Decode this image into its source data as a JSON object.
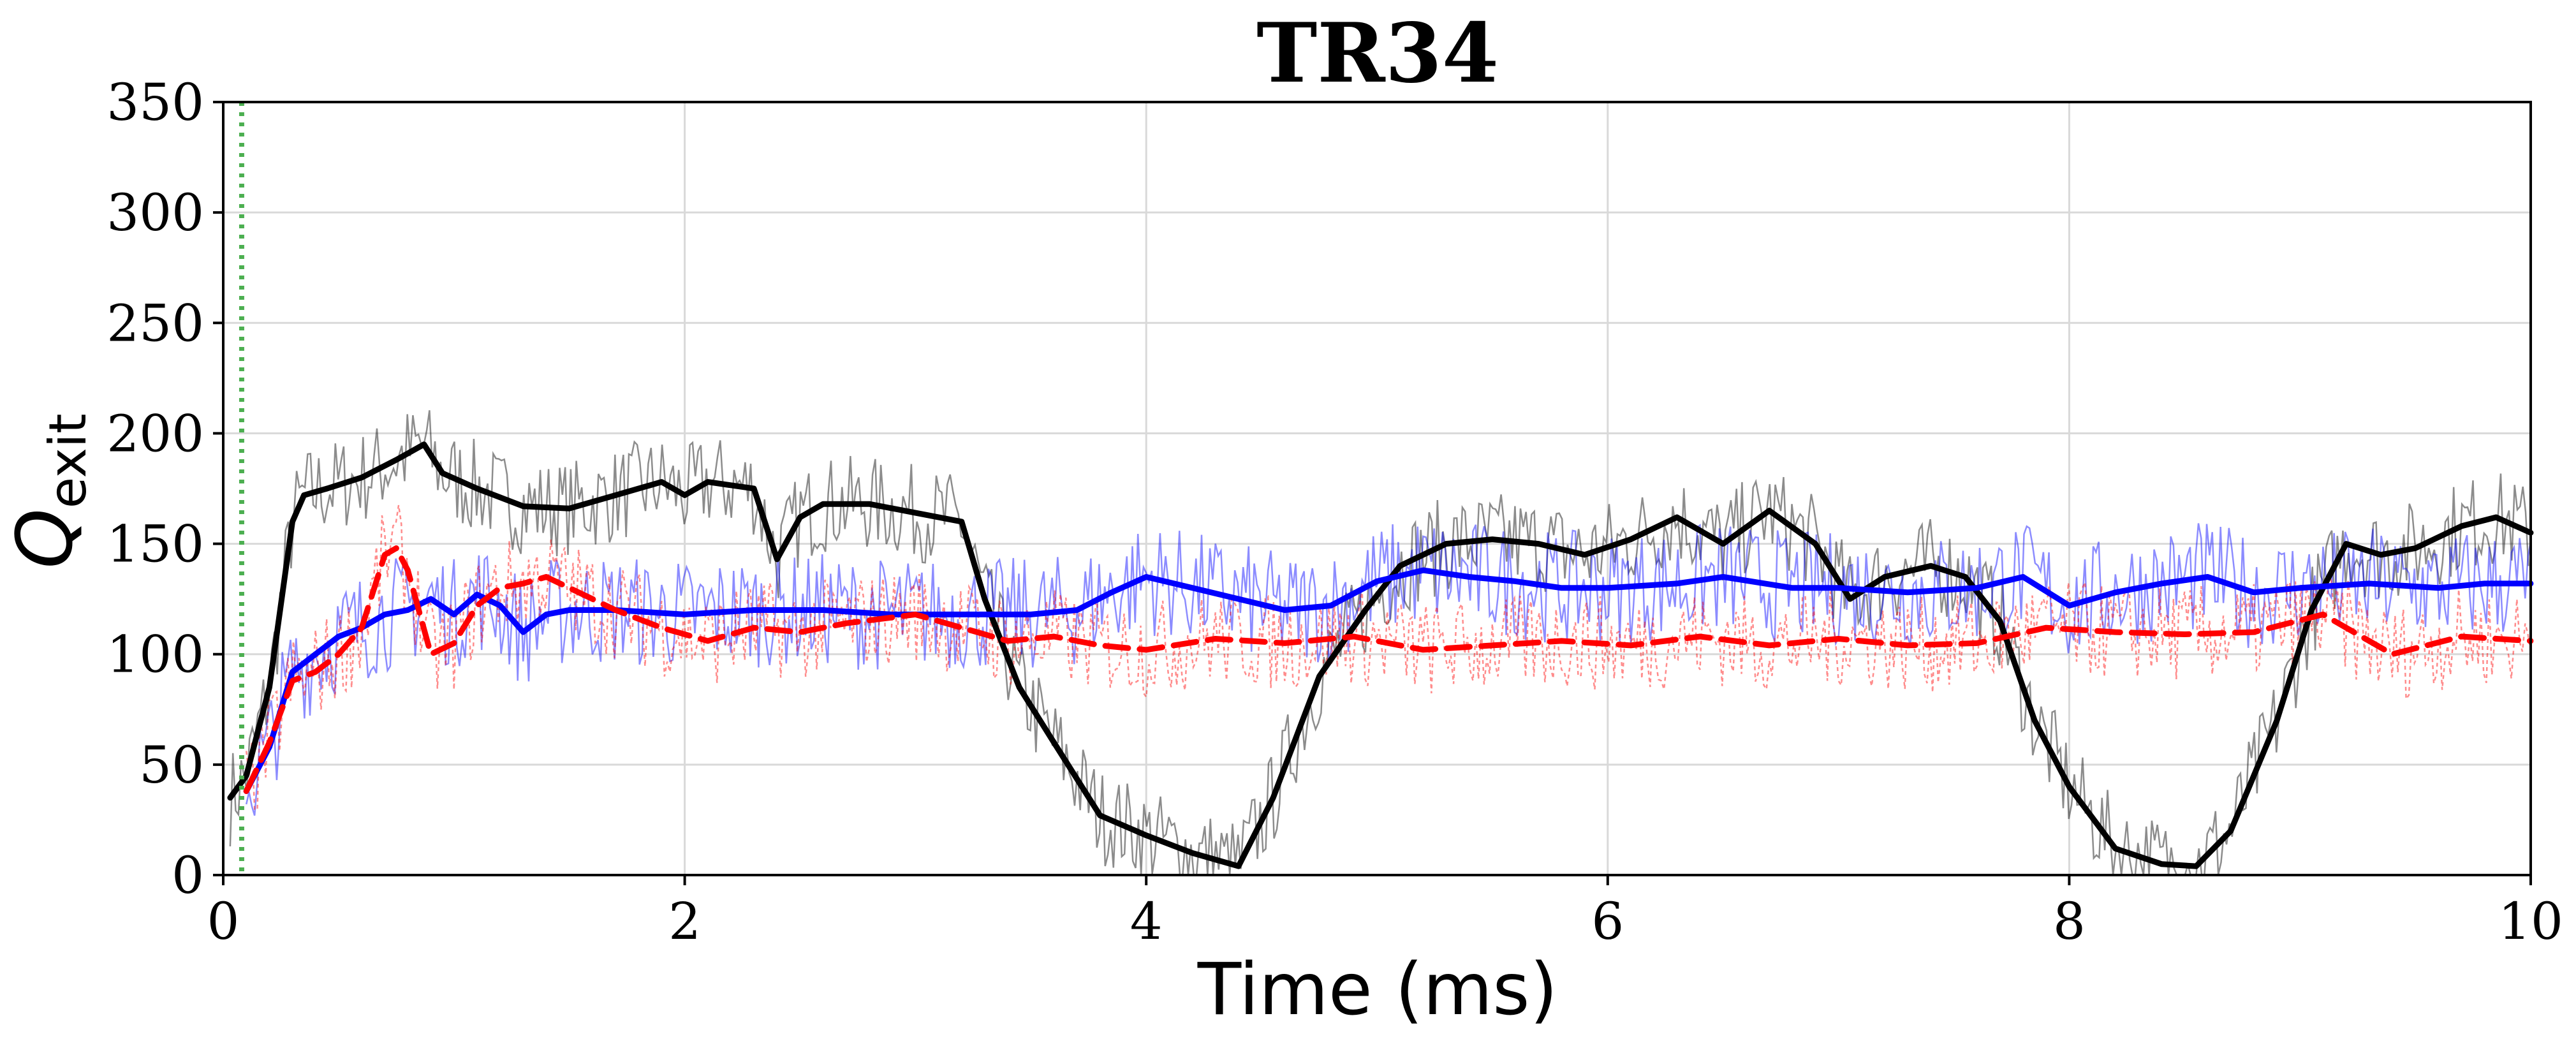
{
  "chart_data": {
    "type": "line",
    "title": "TR34",
    "xlabel": "Time (ms)",
    "ylabel": "Q",
    "ylabel_subscript": "exit",
    "xlim": [
      0,
      10
    ],
    "ylim": [
      0,
      350
    ],
    "xticks": [
      0,
      2,
      4,
      6,
      8,
      10
    ],
    "yticks": [
      0,
      50,
      100,
      150,
      200,
      250,
      300,
      350
    ],
    "xtick_labels": [
      "0",
      "2",
      "4",
      "6",
      "8",
      "10"
    ],
    "ytick_labels": [
      "0",
      "50",
      "100",
      "150",
      "200",
      "250",
      "300",
      "350"
    ],
    "grid": true,
    "vertical_marker": {
      "x": 0.08,
      "color": "#4caf50",
      "style": "dotted"
    },
    "series": [
      {
        "color": "#000000",
        "style": "solid-thick",
        "x": [
          0.03,
          0.1,
          0.2,
          0.3,
          0.35,
          0.45,
          0.6,
          0.75,
          0.87,
          0.95,
          1.1,
          1.3,
          1.5,
          1.7,
          1.9,
          2.0,
          2.1,
          2.3,
          2.4,
          2.5,
          2.6,
          2.8,
          3.0,
          3.2,
          3.3,
          3.45,
          3.6,
          3.8,
          4.0,
          4.2,
          4.4,
          4.55,
          4.75,
          4.95,
          5.1,
          5.3,
          5.5,
          5.7,
          5.9,
          6.1,
          6.3,
          6.5,
          6.7,
          6.9,
          7.05,
          7.2,
          7.4,
          7.55,
          7.7,
          7.85,
          8.0,
          8.2,
          8.4,
          8.55,
          8.7,
          8.9,
          9.05,
          9.2,
          9.35,
          9.5,
          9.7,
          9.85,
          10.0
        ],
        "y": [
          35,
          45,
          85,
          160,
          172,
          175,
          180,
          188,
          195,
          182,
          175,
          167,
          166,
          172,
          178,
          172,
          178,
          175,
          143,
          162,
          168,
          168,
          164,
          160,
          125,
          85,
          60,
          27,
          18,
          10,
          4,
          35,
          90,
          120,
          140,
          150,
          152,
          150,
          145,
          152,
          162,
          150,
          165,
          150,
          125,
          135,
          140,
          135,
          115,
          70,
          40,
          12,
          5,
          4,
          20,
          70,
          120,
          150,
          145,
          148,
          158,
          162,
          155
        ]
      },
      {
        "color": "#0000ff",
        "style": "solid-thick",
        "x": [
          0.1,
          0.2,
          0.3,
          0.4,
          0.5,
          0.6,
          0.7,
          0.8,
          0.9,
          1.0,
          1.1,
          1.2,
          1.3,
          1.4,
          1.5,
          1.7,
          2.0,
          2.3,
          2.6,
          2.9,
          3.2,
          3.5,
          3.7,
          3.85,
          4.0,
          4.2,
          4.4,
          4.6,
          4.8,
          5.0,
          5.2,
          5.4,
          5.6,
          5.8,
          6.0,
          6.3,
          6.5,
          6.8,
          7.0,
          7.3,
          7.6,
          7.8,
          8.0,
          8.2,
          8.4,
          8.6,
          8.8,
          9.0,
          9.3,
          9.6,
          9.8,
          10.0
        ],
        "y": [
          38,
          58,
          92,
          100,
          108,
          112,
          118,
          120,
          125,
          118,
          127,
          122,
          110,
          118,
          120,
          120,
          118,
          120,
          120,
          118,
          118,
          118,
          120,
          128,
          135,
          130,
          125,
          120,
          122,
          133,
          138,
          135,
          133,
          130,
          130,
          132,
          135,
          130,
          130,
          128,
          130,
          135,
          122,
          128,
          132,
          135,
          128,
          130,
          132,
          130,
          132,
          132
        ]
      },
      {
        "color": "#ff0000",
        "style": "dashed-thick",
        "x": [
          0.1,
          0.2,
          0.3,
          0.4,
          0.5,
          0.6,
          0.7,
          0.75,
          0.8,
          0.9,
          1.0,
          1.1,
          1.2,
          1.3,
          1.4,
          1.5,
          1.7,
          1.9,
          2.1,
          2.3,
          2.5,
          2.7,
          3.0,
          3.2,
          3.4,
          3.6,
          3.8,
          4.0,
          4.3,
          4.6,
          4.9,
          5.2,
          5.5,
          5.8,
          6.1,
          6.4,
          6.7,
          7.0,
          7.3,
          7.6,
          7.9,
          8.2,
          8.5,
          8.8,
          9.1,
          9.4,
          9.7,
          10.0
        ],
        "y": [
          38,
          60,
          88,
          92,
          100,
          112,
          145,
          148,
          138,
          100,
          105,
          122,
          130,
          132,
          135,
          130,
          120,
          112,
          106,
          112,
          110,
          114,
          118,
          112,
          106,
          108,
          104,
          102,
          107,
          105,
          108,
          102,
          104,
          106,
          104,
          108,
          104,
          107,
          104,
          105,
          112,
          110,
          109,
          110,
          118,
          100,
          108,
          106
        ]
      }
    ]
  }
}
